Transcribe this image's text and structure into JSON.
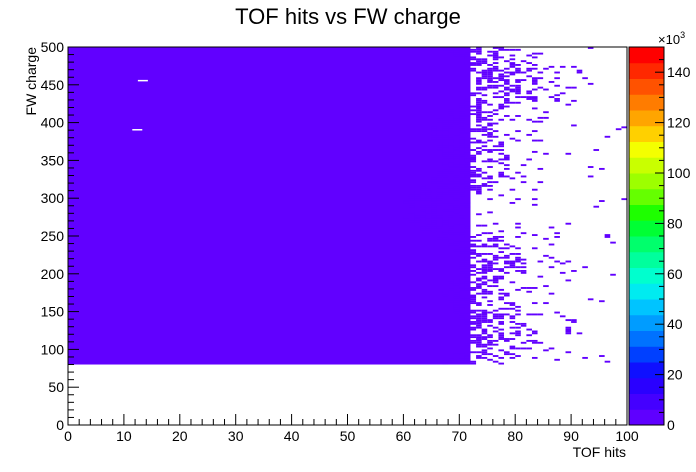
{
  "chart_data": {
    "type": "heatmap",
    "title": "TOF hits vs FW charge",
    "xlabel": "TOF hits",
    "ylabel": "FW charge",
    "xlim": [
      0,
      100
    ],
    "ylim": [
      0,
      500
    ],
    "x_ticks": [
      "0",
      "10",
      "20",
      "30",
      "40",
      "50",
      "60",
      "70",
      "80",
      "90",
      "100"
    ],
    "y_ticks": [
      "0",
      "50",
      "100",
      "150",
      "200",
      "250",
      "300",
      "350",
      "400",
      "450",
      "500"
    ],
    "colorbar": {
      "exponent_label": "×10",
      "exponent": "3",
      "range": [
        0,
        150
      ],
      "ticks": [
        "0",
        "20",
        "40",
        "60",
        "80",
        "100",
        "120",
        "140"
      ],
      "palette": [
        "#5f00ff",
        "#4400ff",
        "#2a00ff",
        "#0f10ff",
        "#0040ff",
        "#0072ff",
        "#009cff",
        "#00c4ff",
        "#00ebf0",
        "#00ffce",
        "#00ff9d",
        "#00ff6c",
        "#00ff34",
        "#1eff00",
        "#65ff00",
        "#9dff00",
        "#c9ff00",
        "#f4ff00",
        "#ffd000",
        "#ffa500",
        "#ff7c00",
        "#ff5200",
        "#ff2800",
        "#ff0000"
      ]
    },
    "fill_color": "#6100ff",
    "dense_region": {
      "x": [
        0,
        72
      ],
      "y": [
        80,
        500
      ]
    },
    "sparse_edge": {
      "x": [
        60,
        100
      ],
      "y": [
        80,
        500
      ]
    }
  }
}
